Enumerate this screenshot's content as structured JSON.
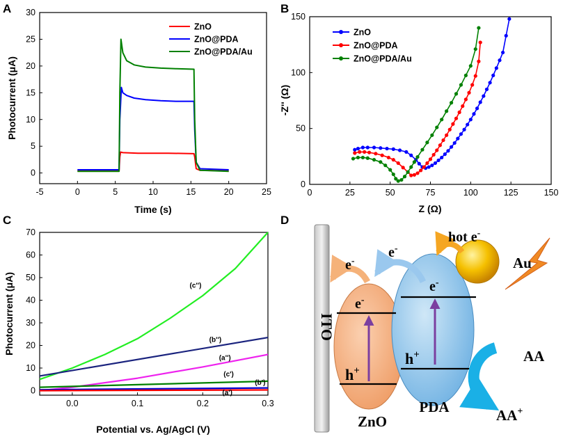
{
  "panels": {
    "a": "A",
    "b": "B",
    "c": "C",
    "d": "D"
  },
  "chart_data": [
    {
      "id": "A",
      "type": "line",
      "title": "",
      "xlabel": "Time (s)",
      "ylabel": "Photocurrent (μA)",
      "xlim": [
        -5,
        25
      ],
      "ylim": [
        -2,
        30
      ],
      "xticks": [
        -5,
        0,
        5,
        10,
        15,
        20,
        25
      ],
      "yticks": [
        0,
        5,
        10,
        15,
        20,
        25,
        30
      ],
      "legend_position": "top-right",
      "series": [
        {
          "name": "ZnO",
          "color": "#ff0000",
          "x": [
            0,
            5.5,
            5.6,
            5.7,
            6.0,
            8,
            10,
            12,
            15.4,
            15.5,
            15.7,
            16.2,
            20
          ],
          "y": [
            0.4,
            0.4,
            3.0,
            3.9,
            3.8,
            3.7,
            3.7,
            3.7,
            3.6,
            3.0,
            0.8,
            0.5,
            0.4
          ]
        },
        {
          "name": "ZnO@PDA",
          "color": "#0000ff",
          "x": [
            0,
            5.5,
            5.6,
            5.8,
            6.0,
            6.5,
            7.5,
            9,
            11,
            13,
            15.4,
            15.5,
            15.7,
            16.2,
            20
          ],
          "y": [
            0.6,
            0.6,
            10.0,
            16.0,
            15.0,
            14.5,
            14.0,
            13.7,
            13.5,
            13.4,
            13.4,
            8.0,
            2.0,
            0.8,
            0.6
          ]
        },
        {
          "name": "ZnO@PDA/Au",
          "color": "#008000",
          "x": [
            0,
            5.5,
            5.6,
            5.75,
            6.0,
            6.5,
            7.5,
            9,
            11,
            13,
            15.4,
            15.5,
            15.7,
            16.2,
            20
          ],
          "y": [
            0.3,
            0.3,
            15.0,
            25.0,
            22.5,
            21.0,
            20.2,
            19.8,
            19.6,
            19.5,
            19.4,
            10.0,
            2.0,
            0.5,
            0.3
          ]
        }
      ]
    },
    {
      "id": "B",
      "type": "scatter",
      "title": "",
      "xlabel": "Z (Ω)",
      "ylabel": "-Z'' (Ω)",
      "xlim": [
        0,
        150
      ],
      "ylim": [
        0,
        150
      ],
      "xticks": [
        0,
        25,
        50,
        75,
        100,
        125,
        150
      ],
      "yticks": [
        0,
        50,
        100,
        150
      ],
      "legend_position": "top-left",
      "series": [
        {
          "name": "ZnO",
          "color": "#0000ff",
          "x": [
            28,
            30,
            33,
            36,
            40,
            44,
            48,
            52,
            56,
            60,
            63,
            66,
            68,
            70,
            72,
            74,
            76,
            78,
            80,
            82,
            84,
            86,
            88,
            90,
            92,
            94,
            96,
            98,
            100,
            102,
            104,
            106,
            108,
            110,
            112,
            114,
            116,
            118,
            120,
            122,
            124
          ],
          "y": [
            31,
            32,
            33,
            33,
            33,
            32.5,
            32,
            31.5,
            30.5,
            29,
            26,
            22,
            18.5,
            15.5,
            14.5,
            15.5,
            17,
            19,
            21.5,
            24,
            27,
            30,
            33.5,
            37,
            41,
            45,
            49,
            53.5,
            58,
            63,
            68,
            73.5,
            79,
            85,
            91,
            97.5,
            104,
            111,
            118,
            133,
            148
          ]
        },
        {
          "name": "ZnO@PDA",
          "color": "#ff0000",
          "x": [
            28,
            31,
            34,
            37,
            41,
            45,
            49,
            52,
            55,
            58,
            61,
            63,
            65,
            67,
            69,
            71,
            73,
            75,
            77,
            79,
            81,
            83,
            85,
            87,
            89,
            91,
            93,
            95,
            97,
            99,
            101,
            103,
            105,
            106
          ],
          "y": [
            28,
            29,
            29,
            28.5,
            27.5,
            26,
            24,
            22,
            19,
            15,
            11,
            8,
            8.5,
            10,
            12.5,
            15.5,
            19,
            22.5,
            26.5,
            30.5,
            35,
            39.5,
            44,
            49,
            54,
            59,
            64.5,
            70,
            76,
            82,
            89,
            97,
            110,
            127
          ]
        },
        {
          "name": "ZnO@PDA/Au",
          "color": "#008000",
          "x": [
            27,
            30,
            33,
            36,
            40,
            44,
            47,
            50,
            52,
            53.5,
            55,
            57,
            59,
            61,
            63,
            65,
            67,
            70,
            73,
            76,
            79,
            82,
            85,
            88,
            91,
            94,
            97,
            100,
            103,
            105
          ],
          "y": [
            23,
            24,
            24,
            23.5,
            22,
            20,
            17,
            13,
            9,
            5,
            3,
            4,
            7,
            11,
            15.5,
            20,
            24.5,
            31,
            37.5,
            44,
            51,
            58,
            65.5,
            73,
            81,
            89,
            97.5,
            106,
            121,
            140
          ]
        }
      ]
    },
    {
      "id": "C",
      "type": "line",
      "title": "",
      "xlabel": "Potential vs. Ag/AgCl (V)",
      "ylabel": "Photocurrent (μA)",
      "xlim": [
        -0.05,
        0.3
      ],
      "ylim": [
        -2,
        70
      ],
      "xticks": [
        0.0,
        0.1,
        0.2,
        0.3
      ],
      "yticks": [
        0,
        10,
        20,
        30,
        40,
        50,
        60,
        70
      ],
      "series": [
        {
          "name": "(c'')",
          "color": "#22ee22",
          "x": [
            -0.05,
            0.0,
            0.05,
            0.1,
            0.15,
            0.2,
            0.25,
            0.3
          ],
          "y": [
            5.0,
            10.0,
            16.0,
            23.0,
            32.0,
            42.0,
            54.0,
            70.0
          ]
        },
        {
          "name": "(b'')",
          "color": "#1a237e",
          "x": [
            -0.05,
            0.3
          ],
          "y": [
            6.5,
            23.5
          ]
        },
        {
          "name": "(a'')",
          "color": "#ee22ee",
          "x": [
            -0.05,
            0.0,
            0.1,
            0.2,
            0.3
          ],
          "y": [
            0.0,
            1.5,
            5.5,
            10.5,
            16.0
          ]
        },
        {
          "name": "(c')",
          "color": "#008000",
          "x": [
            -0.05,
            0.3
          ],
          "y": [
            1.5,
            4.2
          ]
        },
        {
          "name": "(b')",
          "color": "#0000cc",
          "x": [
            -0.05,
            0.3
          ],
          "y": [
            0.4,
            1.2
          ]
        },
        {
          "name": "(a')",
          "color": "#ff0000",
          "x": [
            -0.05,
            0.3
          ],
          "y": [
            0.0,
            0.3
          ]
        }
      ]
    }
  ],
  "schematic": {
    "electrode": "ITO",
    "zno": "ZnO",
    "pda": "PDA",
    "au": "Au",
    "electron": "e",
    "electron_sup": "-",
    "hot_electron": "hot e",
    "hole": "h",
    "hole_sup": "+",
    "aa": "AA",
    "aa_plus": "AA",
    "aa_plus_sup": "+"
  },
  "colors": {
    "zno_body": "#f4a070",
    "pda_body": "#7fbde8",
    "au_body": "#f0b000",
    "electron_arrow": "#f5b27a",
    "pda_arrow": "#9ac8ee",
    "hot_arrow": "#f5a623",
    "aa_arrow": "#1ab0e6",
    "hole_arrow": "#7b3fa0",
    "lightning": "#f08a24"
  }
}
